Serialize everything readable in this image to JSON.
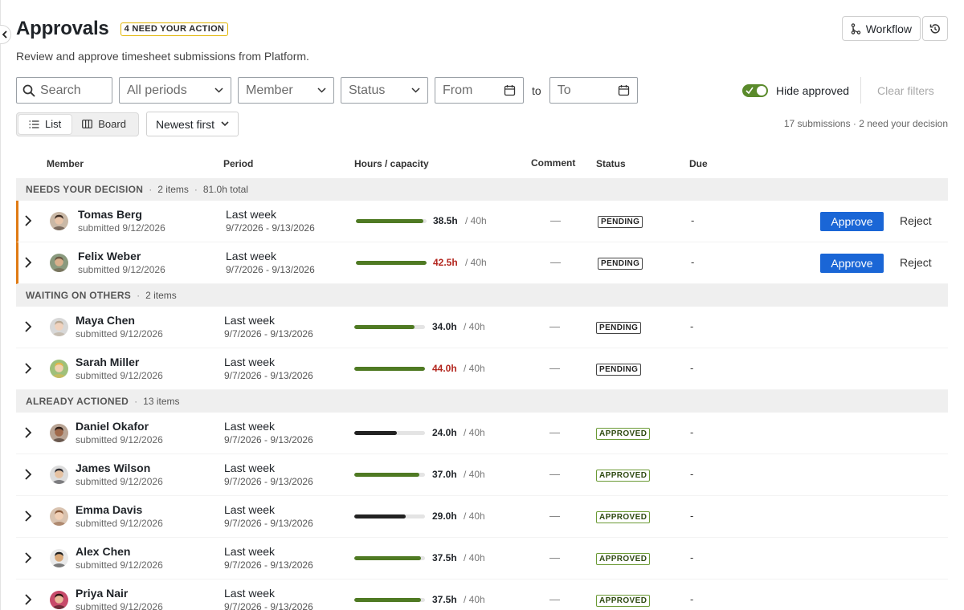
{
  "page": {
    "title": "Approvals",
    "badge": "4 NEED YOUR ACTION",
    "subtitle": "Review and approve timesheet submissions from Platform."
  },
  "toolbar": {
    "workflow_label": "Workflow",
    "reset_icon": "history-icon"
  },
  "filters": {
    "search_placeholder": "Search",
    "period": "All periods",
    "member": "Member",
    "status": "Status",
    "from": "From",
    "to_word": "to",
    "to": "To",
    "hide_approved_label": "Hide approved",
    "hide_approved_on": true,
    "clear_label": "Clear filters"
  },
  "view": {
    "list_label": "List",
    "board_label": "Board",
    "sort_label": "Newest first",
    "summary": "17 submissions · 2 need your decision"
  },
  "columns": {
    "member": "Member",
    "period": "Period",
    "hours": "Hours / capacity",
    "comment": "Comment",
    "status": "Status",
    "due": "Due"
  },
  "actions": {
    "approve": "Approve",
    "reject": "Reject"
  },
  "groups": [
    {
      "name": "NEEDS YOUR DECISION",
      "count": "2 items",
      "total": "81.0h total",
      "rows": [
        {
          "name": "Tomas Berg",
          "submitted": "submitted 9/12/2026",
          "period": "Last week",
          "range": "9/7/2026 - 9/13/2026",
          "hours": "38.5h",
          "cap": "/ 40h",
          "fill": 0.96,
          "over": false,
          "bar_color": "#4f7a23",
          "comment": "—",
          "status": "PENDING",
          "due": "-",
          "avatar_bg": "#c9b8a6",
          "avatar_skin": "#e8c4a8",
          "avatar_hair": "#3b2b22"
        },
        {
          "name": "Felix Weber",
          "submitted": "submitted 9/12/2026",
          "period": "Last week",
          "range": "9/7/2026 - 9/13/2026",
          "hours": "42.5h",
          "cap": "/ 40h",
          "fill": 1.0,
          "over": true,
          "bar_color": "#4f7a23",
          "comment": "—",
          "status": "PENDING",
          "due": "-",
          "avatar_bg": "#8a9a7e",
          "avatar_skin": "#d9b08c",
          "avatar_hair": "#6b5a45"
        }
      ]
    },
    {
      "name": "WAITING ON OTHERS",
      "count": "2 items",
      "total": "",
      "rows": [
        {
          "name": "Maya Chen",
          "submitted": "submitted 9/12/2026",
          "period": "Last week",
          "range": "9/7/2026 - 9/13/2026",
          "hours": "34.0h",
          "cap": "/ 40h",
          "fill": 0.85,
          "over": false,
          "bar_color": "#4f7a23",
          "comment": "—",
          "status": "PENDING",
          "due": "-",
          "avatar_bg": "#d8d8d8",
          "avatar_skin": "#f0d2bd",
          "avatar_hair": "#b8a792"
        },
        {
          "name": "Sarah Miller",
          "submitted": "submitted 9/12/2026",
          "period": "Last week",
          "range": "9/7/2026 - 9/13/2026",
          "hours": "44.0h",
          "cap": "/ 40h",
          "fill": 1.0,
          "over": true,
          "bar_color": "#4f7a23",
          "comment": "—",
          "status": "PENDING",
          "due": "-",
          "avatar_bg": "#9fc07a",
          "avatar_skin": "#f2d0b0",
          "avatar_hair": "#e2b64a"
        }
      ]
    },
    {
      "name": "ALREADY ACTIONED",
      "count": "13 items",
      "total": "",
      "rows": [
        {
          "name": "Daniel Okafor",
          "submitted": "submitted 9/12/2026",
          "period": "Last week",
          "range": "9/7/2026 - 9/13/2026",
          "hours": "24.0h",
          "cap": "/ 40h",
          "fill": 0.6,
          "over": false,
          "bar_color": "#222222",
          "comment": "—",
          "status": "APPROVED",
          "due": "-",
          "avatar_bg": "#b8a393",
          "avatar_skin": "#a0694a",
          "avatar_hair": "#2a1c15"
        },
        {
          "name": "James Wilson",
          "submitted": "submitted 9/12/2026",
          "period": "Last week",
          "range": "9/7/2026 - 9/13/2026",
          "hours": "37.0h",
          "cap": "/ 40h",
          "fill": 0.925,
          "over": false,
          "bar_color": "#4f7a23",
          "comment": "—",
          "status": "APPROVED",
          "due": "-",
          "avatar_bg": "#dcdcdc",
          "avatar_skin": "#e6c2a2",
          "avatar_hair": "#2d2d33"
        },
        {
          "name": "Emma Davis",
          "submitted": "submitted 9/12/2026",
          "period": "Last week",
          "range": "9/7/2026 - 9/13/2026",
          "hours": "29.0h",
          "cap": "/ 40h",
          "fill": 0.725,
          "over": false,
          "bar_color": "#222222",
          "comment": "—",
          "status": "APPROVED",
          "due": "-",
          "avatar_bg": "#d9c3b0",
          "avatar_skin": "#f1cfb5",
          "avatar_hair": "#8a5a3a"
        },
        {
          "name": "Alex Chen",
          "submitted": "submitted 9/12/2026",
          "period": "Last week",
          "range": "9/7/2026 - 9/13/2026",
          "hours": "37.5h",
          "cap": "/ 40h",
          "fill": 0.94,
          "over": false,
          "bar_color": "#4f7a23",
          "comment": "—",
          "status": "APPROVED",
          "due": "-",
          "avatar_bg": "#e9e9e9",
          "avatar_skin": "#d9a878",
          "avatar_hair": "#1e1e1e"
        },
        {
          "name": "Priya Nair",
          "submitted": "submitted 9/12/2026",
          "period": "Last week",
          "range": "9/7/2026 - 9/13/2026",
          "hours": "37.5h",
          "cap": "/ 40h",
          "fill": 0.94,
          "over": false,
          "bar_color": "#4f7a23",
          "comment": "—",
          "status": "APPROVED",
          "due": "-",
          "avatar_bg": "#c74a6a",
          "avatar_skin": "#e9b999",
          "avatar_hair": "#2a1612"
        }
      ]
    }
  ],
  "colors": {
    "accent": "#1a66d6",
    "badge_border": "#e0b400",
    "flag": "#e07b15",
    "over": "#b3261e",
    "toggle_on": "#5a8a2b"
  }
}
